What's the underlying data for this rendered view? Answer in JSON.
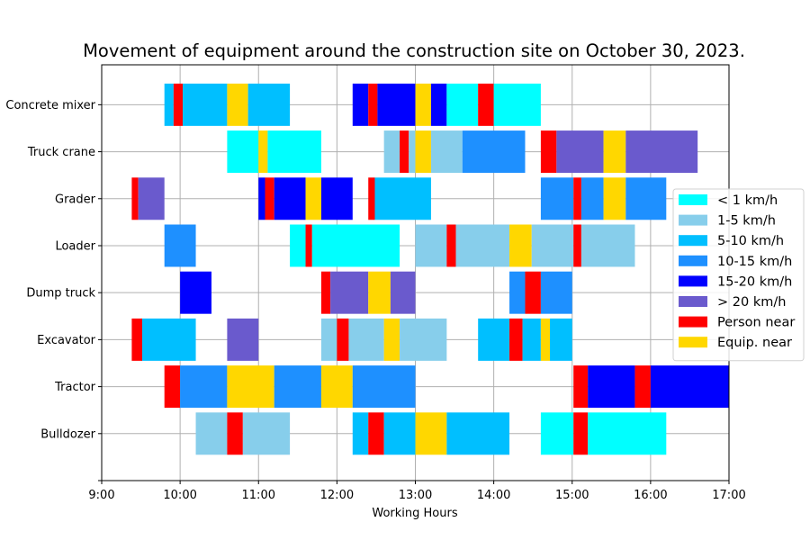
{
  "chart_data": {
    "type": "gantt",
    "title": "Movement of equipment around the construction site on October 30, 2023.",
    "xlabel": "Working Hours",
    "ylabel": "",
    "xlim": [
      "9:00",
      "17:00"
    ],
    "x_ticks": [
      "9:00",
      "10:00",
      "11:00",
      "12:00",
      "13:00",
      "14:00",
      "15:00",
      "16:00",
      "17:00"
    ],
    "grid": true,
    "legend_position": "center-right",
    "categories_legend": [
      {
        "key": "lt1",
        "label": "< 1 km/h",
        "color": "#00FFFF"
      },
      {
        "key": "1to5",
        "label": "1-5 km/h",
        "color": "#87CEEB"
      },
      {
        "key": "5to10",
        "label": "5-10 km/h",
        "color": "#00BFFF"
      },
      {
        "key": "10to15",
        "label": "10-15 km/h",
        "color": "#1E90FF"
      },
      {
        "key": "15to20",
        "label": "15-20 km/h",
        "color": "#0000FF"
      },
      {
        "key": "gt20",
        "label": "> 20 km/h",
        "color": "#6A5ACD"
      },
      {
        "key": "person",
        "label": "Person near",
        "color": "#FF0000"
      },
      {
        "key": "equip",
        "label": "Equip. near",
        "color": "#FFD700"
      }
    ],
    "equipment": [
      {
        "name": "Concrete mixer",
        "segments": [
          [
            "9:48",
            "9:55",
            "5to10"
          ],
          [
            "9:55",
            "10:02",
            "person"
          ],
          [
            "10:02",
            "10:36",
            "5to10"
          ],
          [
            "10:36",
            "10:52",
            "equip"
          ],
          [
            "10:52",
            "11:24",
            "5to10"
          ],
          [
            "12:12",
            "12:24",
            "15to20"
          ],
          [
            "12:24",
            "12:31",
            "person"
          ],
          [
            "12:31",
            "13:00",
            "15to20"
          ],
          [
            "13:00",
            "13:12",
            "equip"
          ],
          [
            "13:12",
            "13:24",
            "15to20"
          ],
          [
            "13:24",
            "13:48",
            "lt1"
          ],
          [
            "13:48",
            "14:00",
            "person"
          ],
          [
            "14:00",
            "14:36",
            "lt1"
          ]
        ]
      },
      {
        "name": "Truck crane",
        "segments": [
          [
            "10:36",
            "11:00",
            "lt1"
          ],
          [
            "11:00",
            "11:07",
            "equip"
          ],
          [
            "11:07",
            "11:48",
            "lt1"
          ],
          [
            "12:36",
            "12:48",
            "1to5"
          ],
          [
            "12:48",
            "12:55",
            "person"
          ],
          [
            "12:55",
            "13:00",
            "1to5"
          ],
          [
            "13:00",
            "13:12",
            "equip"
          ],
          [
            "13:12",
            "13:36",
            "1to5"
          ],
          [
            "13:36",
            "14:24",
            "10to15"
          ],
          [
            "14:36",
            "14:48",
            "person"
          ],
          [
            "14:48",
            "15:24",
            "gt20"
          ],
          [
            "15:24",
            "15:41",
            "equip"
          ],
          [
            "15:41",
            "16:36",
            "gt20"
          ]
        ]
      },
      {
        "name": "Grader",
        "segments": [
          [
            "9:23",
            "9:28",
            "person"
          ],
          [
            "9:28",
            "9:48",
            "gt20"
          ],
          [
            "11:00",
            "11:05",
            "15to20"
          ],
          [
            "11:05",
            "11:12",
            "person"
          ],
          [
            "11:12",
            "11:36",
            "15to20"
          ],
          [
            "11:36",
            "11:48",
            "equip"
          ],
          [
            "11:48",
            "12:12",
            "15to20"
          ],
          [
            "12:24",
            "12:29",
            "person"
          ],
          [
            "12:29",
            "13:12",
            "5to10"
          ],
          [
            "14:36",
            "15:01",
            "10to15"
          ],
          [
            "15:01",
            "15:07",
            "person"
          ],
          [
            "15:07",
            "15:24",
            "10to15"
          ],
          [
            "15:24",
            "15:41",
            "equip"
          ],
          [
            "15:41",
            "16:12",
            "10to15"
          ]
        ]
      },
      {
        "name": "Loader",
        "segments": [
          [
            "9:48",
            "10:12",
            "10to15"
          ],
          [
            "11:24",
            "11:36",
            "lt1"
          ],
          [
            "11:36",
            "11:41",
            "person"
          ],
          [
            "11:41",
            "12:48",
            "lt1"
          ],
          [
            "13:00",
            "13:24",
            "1to5"
          ],
          [
            "13:24",
            "13:31",
            "person"
          ],
          [
            "13:31",
            "14:12",
            "1to5"
          ],
          [
            "14:12",
            "14:29",
            "equip"
          ],
          [
            "14:29",
            "15:01",
            "1to5"
          ],
          [
            "15:01",
            "15:07",
            "person"
          ],
          [
            "15:07",
            "15:48",
            "1to5"
          ]
        ]
      },
      {
        "name": "Dump truck",
        "segments": [
          [
            "10:00",
            "10:24",
            "15to20"
          ],
          [
            "11:48",
            "11:55",
            "person"
          ],
          [
            "11:55",
            "12:24",
            "gt20"
          ],
          [
            "12:24",
            "12:41",
            "equip"
          ],
          [
            "12:41",
            "13:00",
            "gt20"
          ],
          [
            "14:12",
            "14:24",
            "10to15"
          ],
          [
            "14:24",
            "14:36",
            "person"
          ],
          [
            "14:36",
            "15:00",
            "10to15"
          ]
        ]
      },
      {
        "name": "Excavator",
        "segments": [
          [
            "9:23",
            "9:31",
            "person"
          ],
          [
            "9:31",
            "10:12",
            "5to10"
          ],
          [
            "10:36",
            "11:00",
            "gt20"
          ],
          [
            "11:48",
            "12:00",
            "1to5"
          ],
          [
            "12:00",
            "12:09",
            "person"
          ],
          [
            "12:09",
            "12:36",
            "1to5"
          ],
          [
            "12:36",
            "12:48",
            "equip"
          ],
          [
            "12:48",
            "13:24",
            "1to5"
          ],
          [
            "13:48",
            "14:12",
            "5to10"
          ],
          [
            "14:12",
            "14:22",
            "person"
          ],
          [
            "14:22",
            "14:36",
            "5to10"
          ],
          [
            "14:36",
            "14:43",
            "equip"
          ],
          [
            "14:43",
            "15:00",
            "5to10"
          ]
        ]
      },
      {
        "name": "Tractor",
        "segments": [
          [
            "9:48",
            "10:00",
            "person"
          ],
          [
            "10:00",
            "10:36",
            "10to15"
          ],
          [
            "10:36",
            "11:12",
            "equip"
          ],
          [
            "11:12",
            "11:48",
            "10to15"
          ],
          [
            "11:48",
            "12:12",
            "equip"
          ],
          [
            "12:12",
            "13:00",
            "10to15"
          ],
          [
            "15:01",
            "15:12",
            "person"
          ],
          [
            "15:12",
            "15:48",
            "15to20"
          ],
          [
            "15:48",
            "16:00",
            "person"
          ],
          [
            "16:00",
            "17:00",
            "15to20"
          ]
        ]
      },
      {
        "name": "Bulldozer",
        "segments": [
          [
            "10:12",
            "10:36",
            "1to5"
          ],
          [
            "10:36",
            "10:48",
            "person"
          ],
          [
            "10:48",
            "11:24",
            "1to5"
          ],
          [
            "12:12",
            "12:24",
            "5to10"
          ],
          [
            "12:24",
            "12:36",
            "person"
          ],
          [
            "12:36",
            "13:00",
            "5to10"
          ],
          [
            "13:00",
            "13:24",
            "equip"
          ],
          [
            "13:24",
            "14:12",
            "5to10"
          ],
          [
            "14:36",
            "15:01",
            "lt1"
          ],
          [
            "15:01",
            "15:12",
            "person"
          ],
          [
            "15:12",
            "16:12",
            "lt1"
          ]
        ]
      }
    ]
  }
}
